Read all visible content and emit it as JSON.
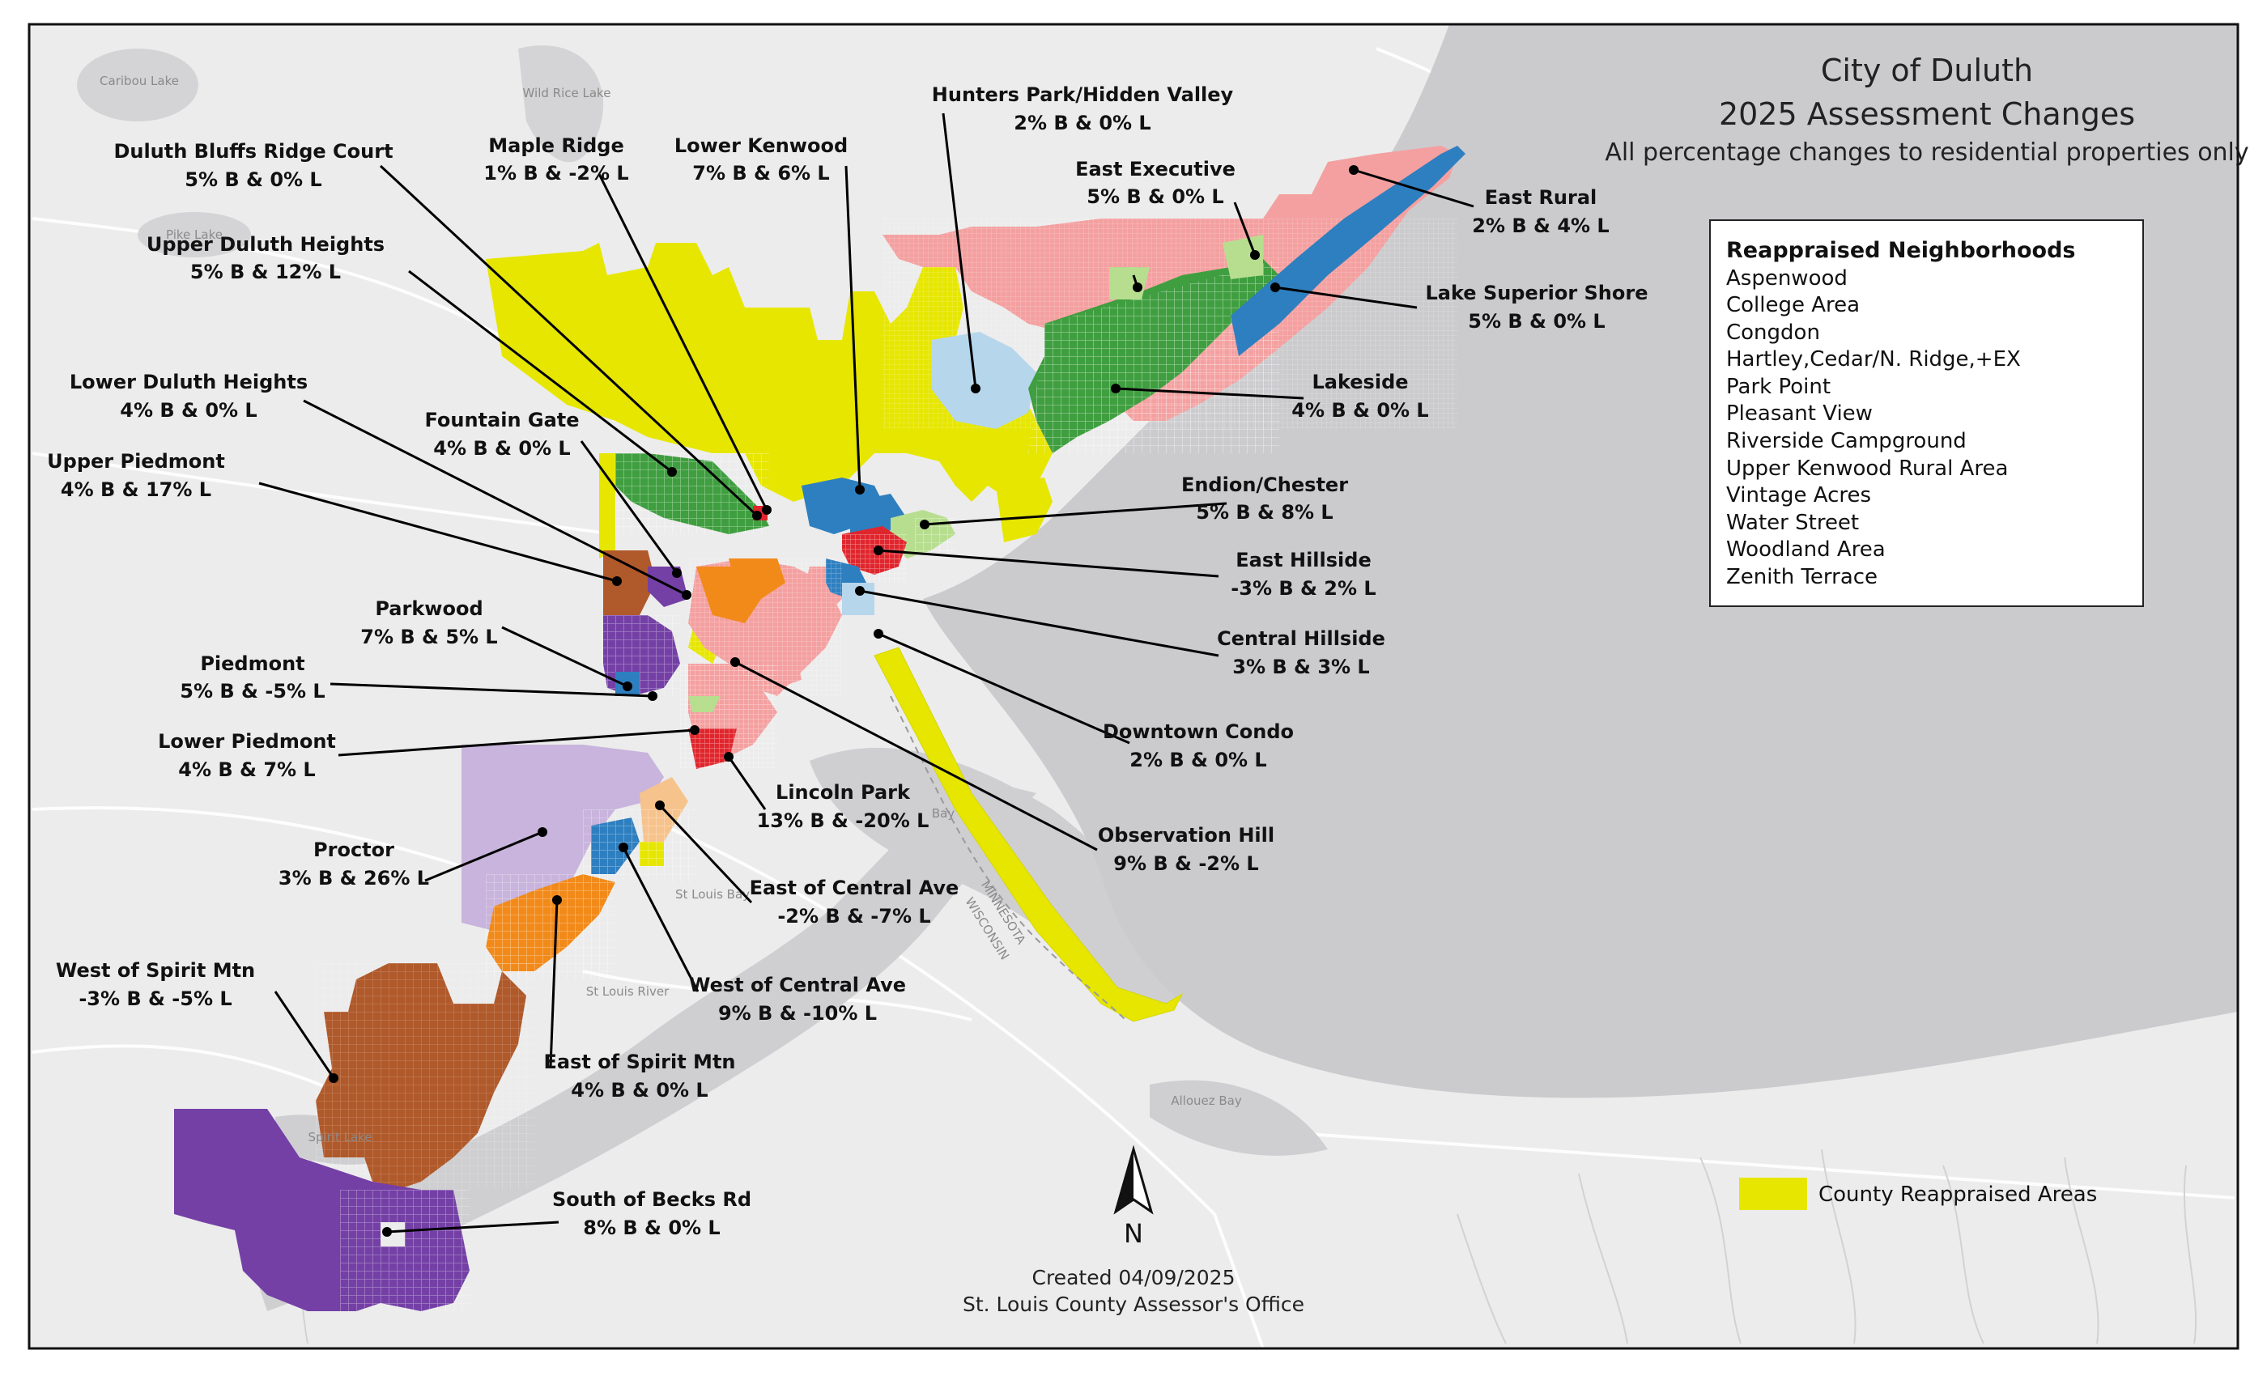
{
  "map": {
    "title": "City of Duluth",
    "subtitle": "2025 Assessment Changes",
    "note": "All percentage changes to residential properties only",
    "credit_line1": "Created 04/09/2025",
    "credit_line2": "St. Louis County Assessor's Office",
    "north_label": "N"
  },
  "legend": {
    "heading": "Reappraised Neighborhoods",
    "items": [
      "Aspenwood",
      "College Area",
      "Congdon",
      "Hartley,Cedar/N. Ridge,+EX",
      "Park Point",
      "Pleasant View",
      "Riverside Campground",
      "Upper Kenwood Rural Area",
      "Vintage Acres",
      "Water Street",
      "Woodland Area",
      "Zenith Terrace"
    ],
    "county_label": "County Reappraised Areas",
    "county_color": "#e6e600"
  },
  "colors": {
    "lake": "#cbcbce",
    "land": "#ececec",
    "yellow": "#e6e600",
    "pink": "#f4a0a0",
    "green": "#3f9e3f",
    "light_green": "#b7de8f",
    "blue": "#2e7fc0",
    "light_blue": "#b6d6ec",
    "red": "#e0262d",
    "orange": "#f28a1a",
    "light_orange": "#f7c38c",
    "brown": "#b0592a",
    "purple": "#7440a6",
    "lavender": "#c8b4dc"
  },
  "water_labels": [
    "Caribou Lake",
    "Wild Rice Lake",
    "Pike Lake",
    "St Louis River",
    "St Louis Bay",
    "Spirit Lake",
    "Allouez Bay",
    "MINNESOTA",
    "WISCONSIN",
    "Bay"
  ],
  "neighborhoods": [
    {
      "name": "Hunters Park/Hidden Valley",
      "value": "2% B & 0% L"
    },
    {
      "name": "Lower Kenwood",
      "value": "7% B & 6% L"
    },
    {
      "name": "Maple Ridge",
      "value": "1% B & -2% L"
    },
    {
      "name": "Duluth Bluffs Ridge Court",
      "value": "5% B & 0% L"
    },
    {
      "name": "East Executive",
      "value": "5% B & 0% L"
    },
    {
      "name": "East Rural",
      "value": "2% B & 4% L"
    },
    {
      "name": "Upper Duluth Heights",
      "value": "5% B & 12% L"
    },
    {
      "name": "Lake Superior Shore",
      "value": "5% B & 0% L"
    },
    {
      "name": "Lower Duluth Heights",
      "value": "4% B & 0% L"
    },
    {
      "name": "Lakeside",
      "value": "4% B & 0% L"
    },
    {
      "name": "Fountain Gate",
      "value": "4% B & 0% L"
    },
    {
      "name": "Upper Piedmont",
      "value": "4% B & 17% L"
    },
    {
      "name": "Endion/Chester",
      "value": "5% B & 8% L"
    },
    {
      "name": "East Hillside",
      "value": "-3% B & 2% L"
    },
    {
      "name": "Parkwood",
      "value": "7% B & 5% L"
    },
    {
      "name": "Central Hillside",
      "value": "3% B & 3% L"
    },
    {
      "name": "Piedmont",
      "value": "5% B & -5% L"
    },
    {
      "name": "Downtown Condo",
      "value": "2% B & 0% L"
    },
    {
      "name": "Lower Piedmont",
      "value": "4% B & 7% L"
    },
    {
      "name": "Lincoln Park",
      "value": "13% B & -20% L"
    },
    {
      "name": "Observation Hill",
      "value": "9% B & -2% L"
    },
    {
      "name": "Proctor",
      "value": "3% B & 26% L"
    },
    {
      "name": "East of Central Ave",
      "value": "-2% B & -7% L"
    },
    {
      "name": "West of Spirit Mtn",
      "value": "-3% B & -5% L"
    },
    {
      "name": "West of Central Ave",
      "value": "9% B & -10% L"
    },
    {
      "name": "East of Spirit Mtn",
      "value": "4% B & 0% L"
    },
    {
      "name": "South of Becks Rd",
      "value": "8% B & 0% L"
    }
  ]
}
